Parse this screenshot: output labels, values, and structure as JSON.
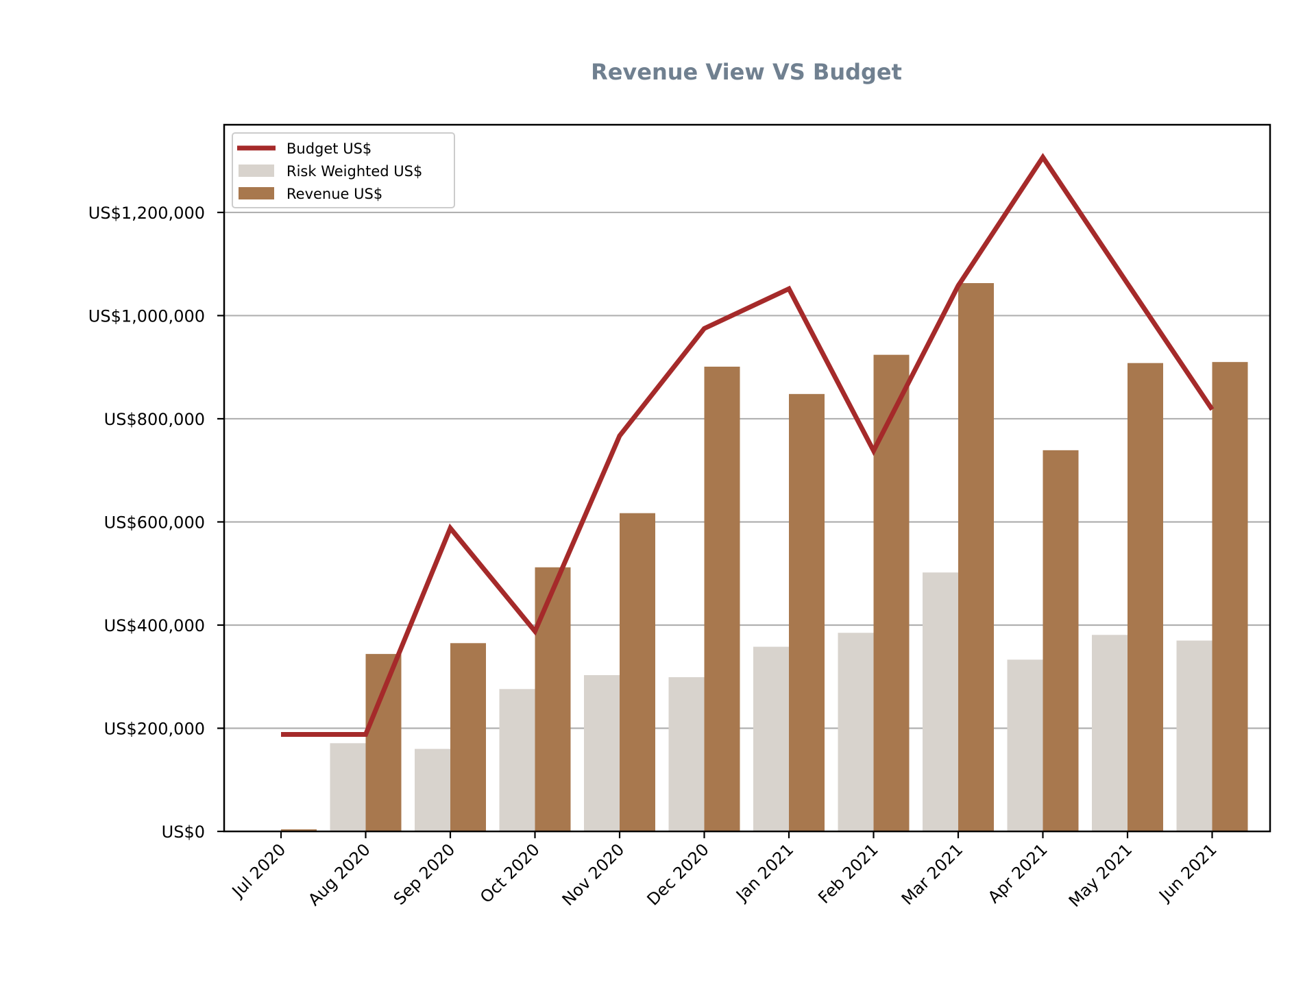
{
  "colors": {
    "title": "#708090",
    "budget": "#a52a2a",
    "risk_weighted": "#d8d3cd",
    "revenue": "#a8784e",
    "grid": "#b0b0b0",
    "axis": "#000000"
  },
  "chart_data": {
    "type": "bar",
    "title": "Revenue View VS Budget",
    "xlabel": "",
    "ylabel": "",
    "categories": [
      "Jul 2020",
      "Aug 2020",
      "Sep 2020",
      "Oct 2020",
      "Nov 2020",
      "Dec 2020",
      "Jan 2021",
      "Feb 2021",
      "Mar 2021",
      "Apr 2021",
      "May 2021",
      "Jun 2021"
    ],
    "ylim": [
      0,
      1370000
    ],
    "yticks": [
      0,
      200000,
      400000,
      600000,
      800000,
      1000000,
      1200000
    ],
    "ytick_labels": [
      "US$0",
      "US$200,000",
      "US$400,000",
      "US$600,000",
      "US$800,000",
      "US$1,000,000",
      "US$1,200,000"
    ],
    "grid": "horizontal",
    "legend_position": "top-left",
    "series": [
      {
        "name": "Budget US$",
        "type": "line",
        "values": [
          188000,
          188000,
          588000,
          388000,
          767000,
          975000,
          1052000,
          738000,
          1058000,
          1307000,
          1062000,
          818000
        ]
      },
      {
        "name": "Risk Weighted US$",
        "type": "bar",
        "values": [
          0,
          171000,
          160000,
          276000,
          303000,
          299000,
          358000,
          385000,
          502000,
          333000,
          381000,
          370000
        ]
      },
      {
        "name": "Revenue US$",
        "type": "bar",
        "values": [
          4000,
          344000,
          365000,
          512000,
          617000,
          901000,
          848000,
          924000,
          1063000,
          739000,
          908000,
          910000
        ]
      }
    ]
  }
}
